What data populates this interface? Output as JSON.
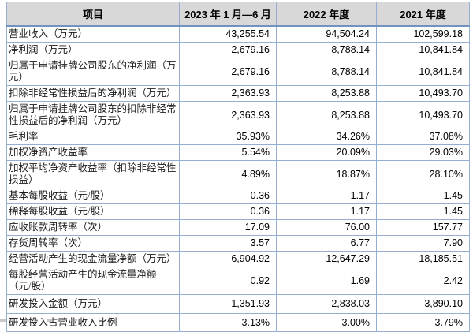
{
  "colors": {
    "header_bg": "#d8d8d8",
    "grid_border": "#95afd3",
    "outer_border": "#7193c0",
    "text": "#111111"
  },
  "table": {
    "columns": [
      "项目",
      "2023 年 1 月—6 月",
      "2022 年度",
      "2021 年度"
    ],
    "rows": [
      {
        "label": "营业收入（万元）",
        "values": [
          "43,255.54",
          "94,504.24",
          "102,599.18"
        ]
      },
      {
        "label": "净利润（万元）",
        "values": [
          "2,679.16",
          "8,788.14",
          "10,841.84"
        ]
      },
      {
        "label": "归属于申请挂牌公司股东的净利润（万元）",
        "values": [
          "2,679.16",
          "8,788.14",
          "10,841.84"
        ]
      },
      {
        "label": "扣除非经常性损益后的净利润（万元）",
        "values": [
          "2,363.93",
          "8,253.88",
          "10,493.70"
        ]
      },
      {
        "label": "归属于申请挂牌公司股东的扣除非经常性损益后的净利润（万元）",
        "values": [
          "2,363.93",
          "8,253.88",
          "10,493.70"
        ]
      },
      {
        "label": "毛利率",
        "values": [
          "35.93%",
          "34.26%",
          "37.08%"
        ]
      },
      {
        "label": "加权净资产收益率",
        "values": [
          "5.54%",
          "20.09%",
          "29.03%"
        ]
      },
      {
        "label": "加权平均净资产收益率（扣除非经常性损益）",
        "values": [
          "4.89%",
          "18.87%",
          "28.10%"
        ]
      },
      {
        "label": "基本每股收益（元/股）",
        "values": [
          "0.36",
          "1.17",
          "1.45"
        ]
      },
      {
        "label": "稀释每股收益（元/股）",
        "values": [
          "0.36",
          "1.17",
          "1.45"
        ]
      },
      {
        "label": "应收账款周转率（次）",
        "values": [
          "17.09",
          "76.00",
          "157.77"
        ]
      },
      {
        "label": "存货周转率（次）",
        "values": [
          "3.57",
          "6.77",
          "7.90"
        ]
      },
      {
        "label": "经营活动产生的现金流量净额（万元）",
        "values": [
          "6,904.92",
          "12,647.29",
          "18,185.51"
        ]
      },
      {
        "label": "每股经营活动产生的现金流量净额（元/股）",
        "values": [
          "0.92",
          "1.69",
          "2.42"
        ]
      },
      {
        "label": "研发投入金额（万元）",
        "values": [
          "1,351.93",
          "2,838.03",
          "3,890.10"
        ]
      },
      {
        "label": "研发投入占营业收入比例",
        "values": [
          "3.13%",
          "3.00%",
          "3.79%"
        ]
      }
    ]
  }
}
